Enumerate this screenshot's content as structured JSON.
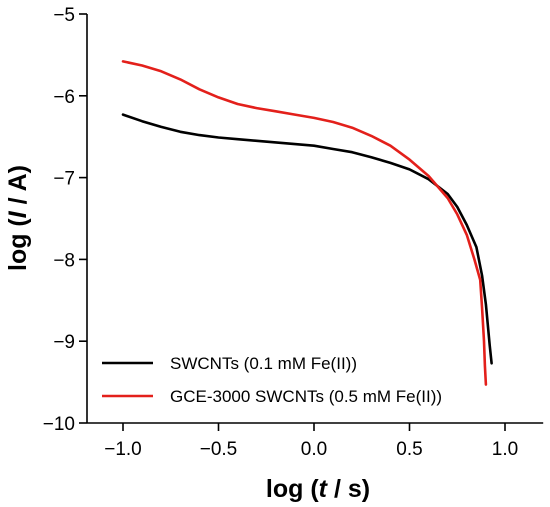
{
  "chart_data": {
    "type": "line",
    "title": "",
    "xlabel": {
      "prefix": "log (",
      "var": "t",
      "unit": " / s)"
    },
    "ylabel": {
      "prefix": "log (",
      "var": "I",
      "unit": " / A)"
    },
    "xlim": [
      -1.2,
      1.2
    ],
    "ylim": [
      -10,
      -5
    ],
    "xticks": [
      -1.0,
      -0.5,
      0.0,
      0.5,
      1.0
    ],
    "xtick_labels": [
      "−1.0",
      "−0.5",
      "0.0",
      "0.5",
      "1.0"
    ],
    "yticks": [
      -10,
      -9,
      -8,
      -7,
      -6,
      -5
    ],
    "ytick_labels": [
      "−10",
      "−9",
      "−8",
      "−7",
      "−6",
      "−5"
    ],
    "grid": false,
    "legend_position": "bottom-left",
    "series": [
      {
        "name": "SWCNTs (0.1 mM Fe(II))",
        "color": "#000000",
        "x": [
          -1.0,
          -0.9,
          -0.8,
          -0.7,
          -0.6,
          -0.5,
          -0.4,
          -0.3,
          -0.2,
          -0.1,
          0.0,
          0.1,
          0.2,
          0.3,
          0.4,
          0.5,
          0.6,
          0.7,
          0.75,
          0.8,
          0.85,
          0.88,
          0.9,
          0.91,
          0.92,
          0.93
        ],
        "y": [
          -6.23,
          -6.31,
          -6.38,
          -6.44,
          -6.48,
          -6.51,
          -6.53,
          -6.55,
          -6.57,
          -6.59,
          -6.61,
          -6.65,
          -6.69,
          -6.75,
          -6.82,
          -6.9,
          -7.02,
          -7.2,
          -7.36,
          -7.58,
          -7.85,
          -8.2,
          -8.55,
          -8.8,
          -9.05,
          -9.27
        ]
      },
      {
        "name": "GCE-3000 SWCNTs (0.5 mM Fe(II))",
        "color": "#e3201b",
        "x": [
          -1.0,
          -0.9,
          -0.8,
          -0.7,
          -0.6,
          -0.5,
          -0.4,
          -0.3,
          -0.2,
          -0.1,
          0.0,
          0.1,
          0.2,
          0.3,
          0.4,
          0.5,
          0.6,
          0.7,
          0.75,
          0.8,
          0.84,
          0.87,
          0.88,
          0.89,
          0.895,
          0.9
        ],
        "y": [
          -5.58,
          -5.63,
          -5.7,
          -5.8,
          -5.92,
          -6.02,
          -6.1,
          -6.15,
          -6.19,
          -6.23,
          -6.27,
          -6.32,
          -6.39,
          -6.49,
          -6.61,
          -6.78,
          -6.98,
          -7.25,
          -7.45,
          -7.7,
          -8.0,
          -8.25,
          -8.6,
          -9.0,
          -9.3,
          -9.53
        ]
      }
    ]
  }
}
